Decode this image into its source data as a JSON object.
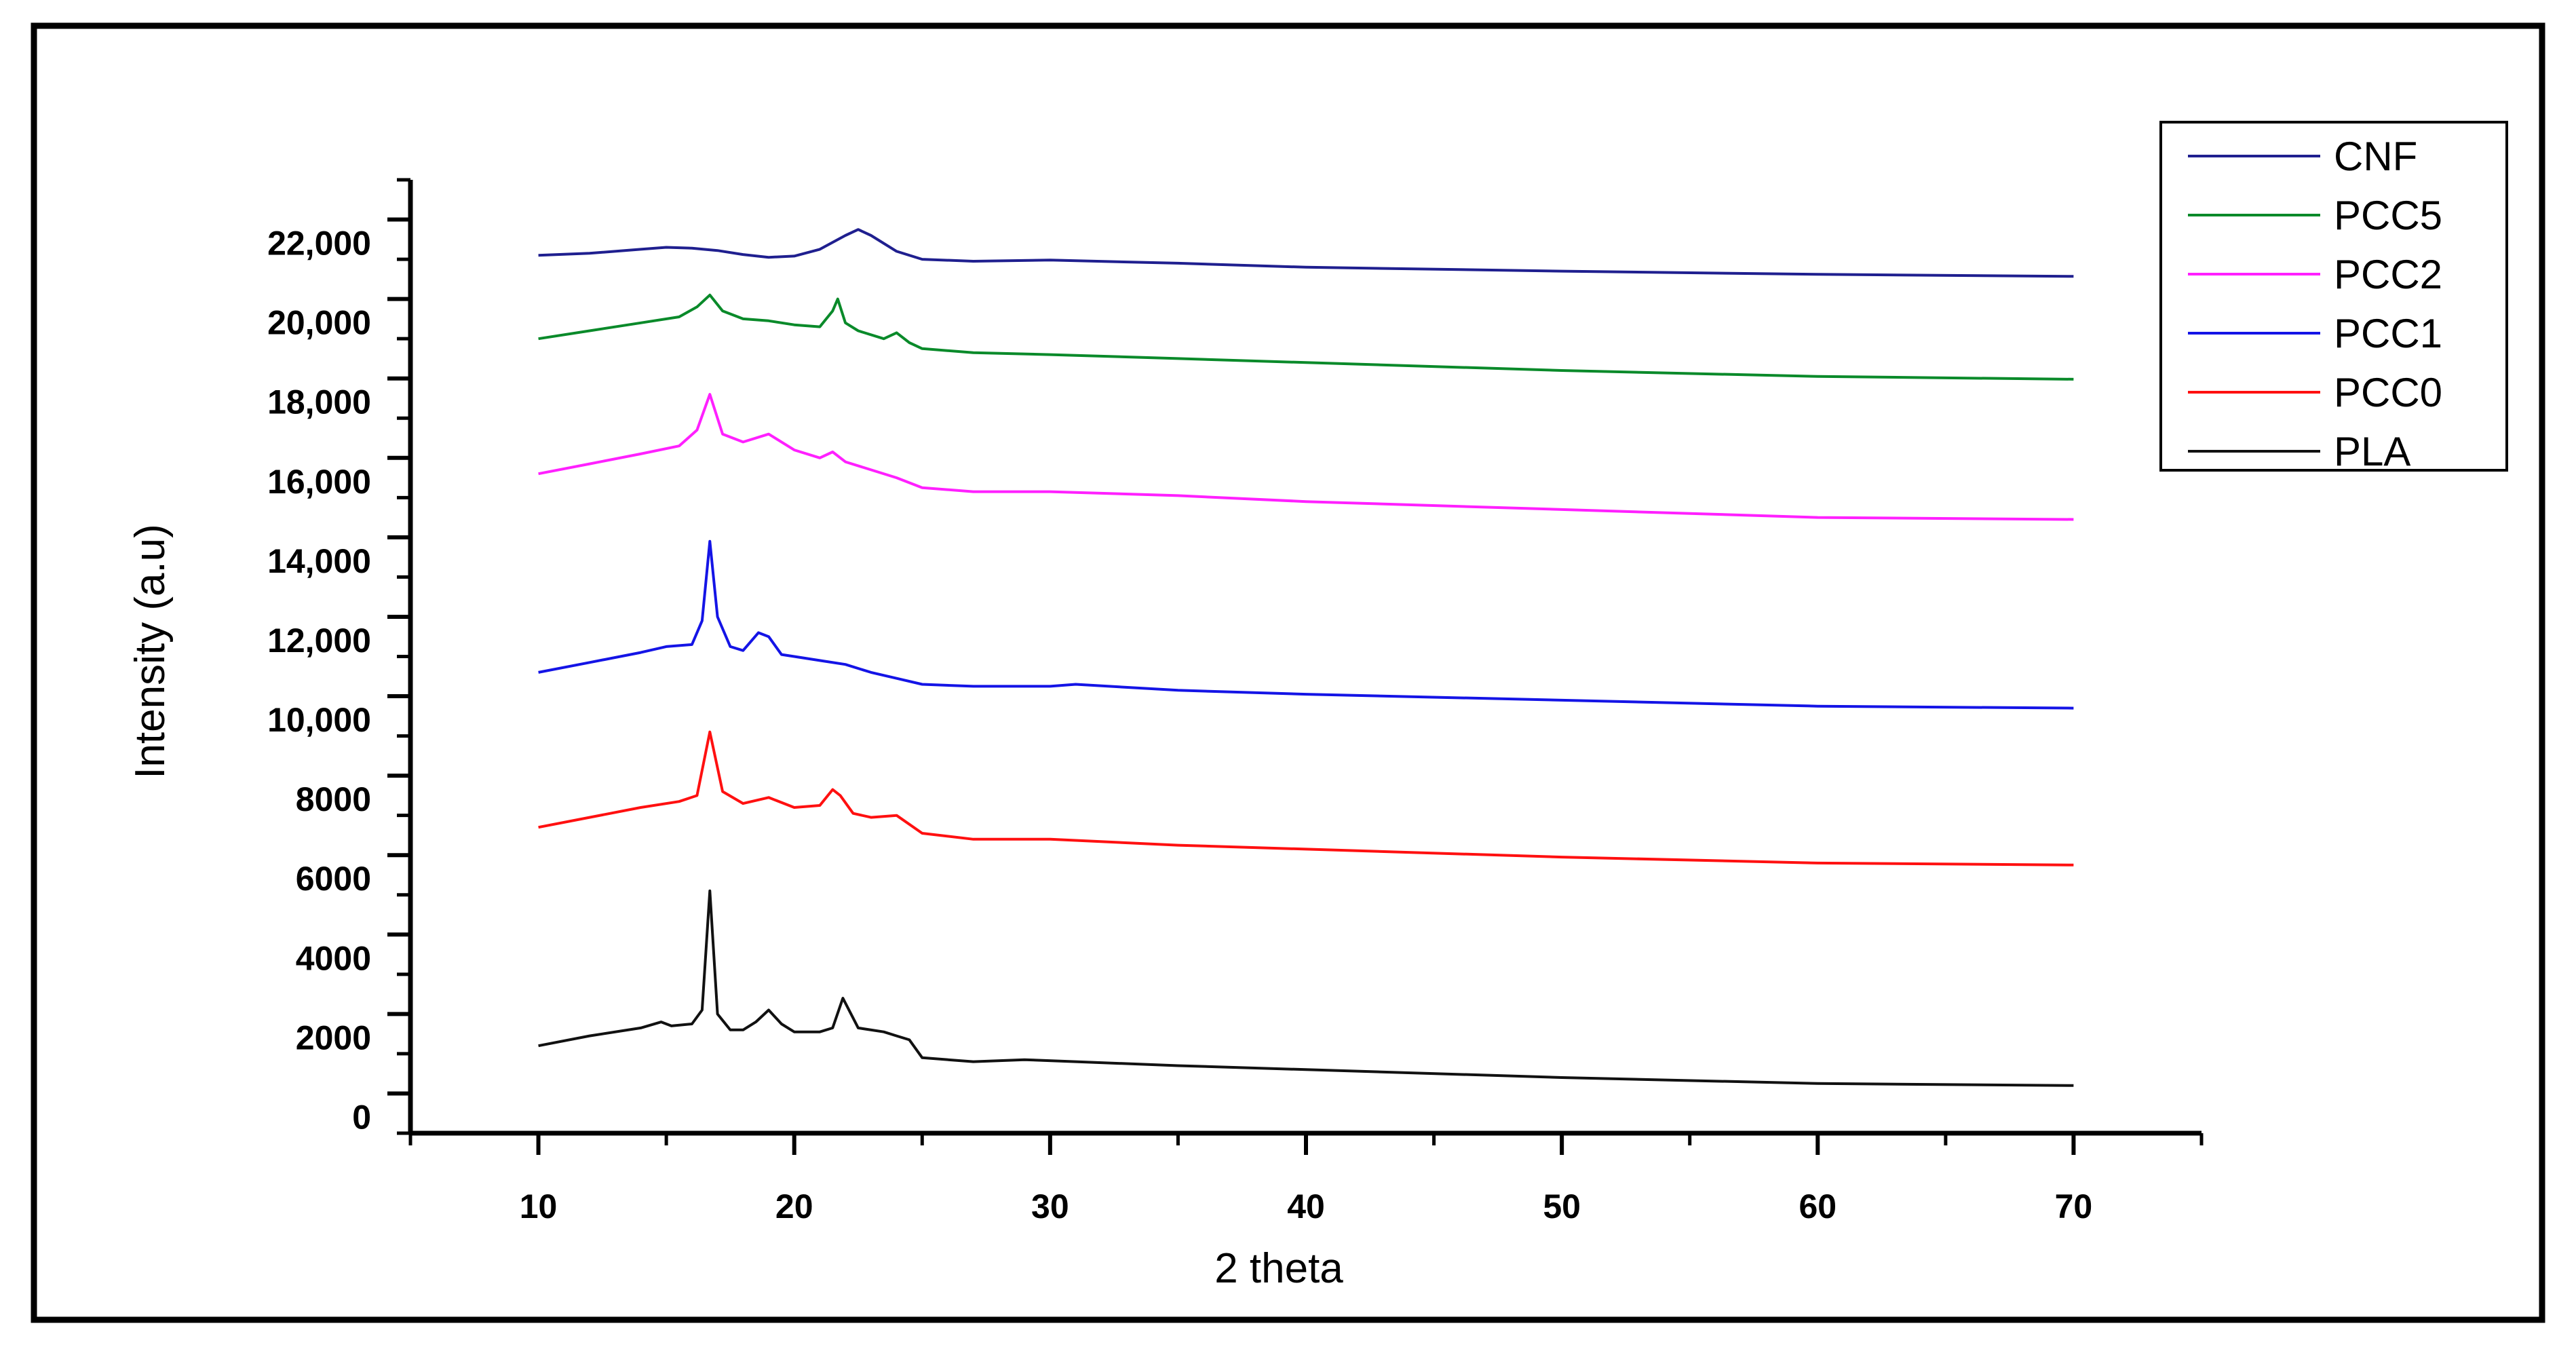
{
  "chart_data": {
    "type": "line",
    "title": "",
    "xlabel": "2 theta",
    "ylabel": "Intensity (a.u)",
    "xlim": [
      5,
      75
    ],
    "ylim": [
      -1000,
      23000
    ],
    "x_ticks": [
      10,
      20,
      30,
      40,
      50,
      60,
      70
    ],
    "x_tick_labels": [
      "10",
      "20",
      "30",
      "40",
      "50",
      "60",
      "70"
    ],
    "y_ticks": [
      0,
      2000,
      4000,
      6000,
      8000,
      10000,
      12000,
      14000,
      16000,
      18000,
      20000,
      22000
    ],
    "y_tick_labels": [
      "0",
      "2000",
      "4000",
      "6000",
      "8000",
      "10,000",
      "12,000",
      "14,000",
      "16,000",
      "18,000",
      "20,000",
      "22,000"
    ],
    "grid": false,
    "legend_position": "top-right",
    "series": [
      {
        "name": "CNF",
        "color": "#1f1f8f",
        "x": [
          10,
          12,
          14,
          15,
          16,
          17,
          18,
          19,
          20,
          21,
          22,
          22.5,
          23,
          24,
          25,
          27,
          30,
          35,
          40,
          50,
          60,
          70
        ],
        "y": [
          21100,
          21150,
          21250,
          21300,
          21280,
          21220,
          21120,
          21050,
          21080,
          21250,
          21600,
          21750,
          21600,
          21200,
          21000,
          20950,
          20980,
          20900,
          20800,
          20700,
          20620,
          20570
        ]
      },
      {
        "name": "PCC5",
        "color": "#0a8a2a",
        "x": [
          10,
          12,
          14,
          15.5,
          16.2,
          16.7,
          17.2,
          18,
          19,
          20,
          21,
          21.5,
          21.7,
          22,
          22.5,
          23.5,
          24,
          24.5,
          25,
          27,
          30,
          35,
          40,
          50,
          60,
          70
        ],
        "y": [
          19000,
          19200,
          19400,
          19550,
          19800,
          20100,
          19700,
          19500,
          19450,
          19350,
          19300,
          19700,
          20000,
          19400,
          19200,
          19000,
          19150,
          18900,
          18750,
          18650,
          18600,
          18500,
          18400,
          18200,
          18050,
          17980
        ]
      },
      {
        "name": "PCC2",
        "color": "#ff20ff",
        "x": [
          10,
          12,
          14,
          15.5,
          16.2,
          16.7,
          17.2,
          18,
          19,
          20,
          21,
          21.5,
          22,
          23,
          24,
          25,
          27,
          30,
          35,
          40,
          50,
          60,
          70
        ],
        "y": [
          15600,
          15850,
          16100,
          16300,
          16700,
          17600,
          16600,
          16400,
          16600,
          16200,
          16000,
          16150,
          15900,
          15700,
          15500,
          15250,
          15150,
          15150,
          15050,
          14900,
          14700,
          14500,
          14450
        ]
      },
      {
        "name": "PCC1",
        "color": "#1414e6",
        "x": [
          10,
          12,
          14,
          15,
          16,
          16.4,
          16.7,
          17,
          17.5,
          18,
          18.6,
          19,
          19.5,
          20,
          21,
          22,
          23,
          24,
          25,
          27,
          30,
          31,
          35,
          40,
          50,
          60,
          70
        ],
        "y": [
          10600,
          10850,
          11100,
          11250,
          11300,
          11900,
          13900,
          12000,
          11250,
          11150,
          11600,
          11500,
          11050,
          11000,
          10900,
          10800,
          10600,
          10450,
          10300,
          10250,
          10250,
          10300,
          10150,
          10050,
          9900,
          9750,
          9700
        ]
      },
      {
        "name": "PCC0",
        "color": "#ff1010",
        "x": [
          10,
          12,
          14,
          15.5,
          16.2,
          16.7,
          17.2,
          18,
          19,
          20,
          21,
          21.5,
          21.8,
          22.3,
          23,
          24,
          25,
          27,
          30,
          35,
          40,
          50,
          60,
          70
        ],
        "y": [
          6700,
          6950,
          7200,
          7350,
          7500,
          9100,
          7600,
          7300,
          7450,
          7200,
          7250,
          7650,
          7500,
          7050,
          6950,
          7000,
          6550,
          6400,
          6400,
          6250,
          6150,
          5950,
          5800,
          5750
        ]
      },
      {
        "name": "PLA",
        "color": "#111111",
        "x": [
          10,
          12,
          14,
          14.8,
          15.2,
          16,
          16.4,
          16.7,
          17,
          17.5,
          18,
          18.5,
          19,
          19.5,
          20,
          21,
          21.5,
          21.9,
          22.5,
          23.5,
          24,
          24.5,
          25,
          27,
          29,
          31,
          35,
          40,
          50,
          60,
          70
        ],
        "y": [
          1200,
          1450,
          1650,
          1800,
          1700,
          1750,
          2100,
          5100,
          2000,
          1600,
          1600,
          1800,
          2100,
          1750,
          1550,
          1550,
          1650,
          2400,
          1650,
          1550,
          1450,
          1350,
          900,
          800,
          850,
          800,
          700,
          600,
          400,
          250,
          200
        ]
      }
    ]
  }
}
